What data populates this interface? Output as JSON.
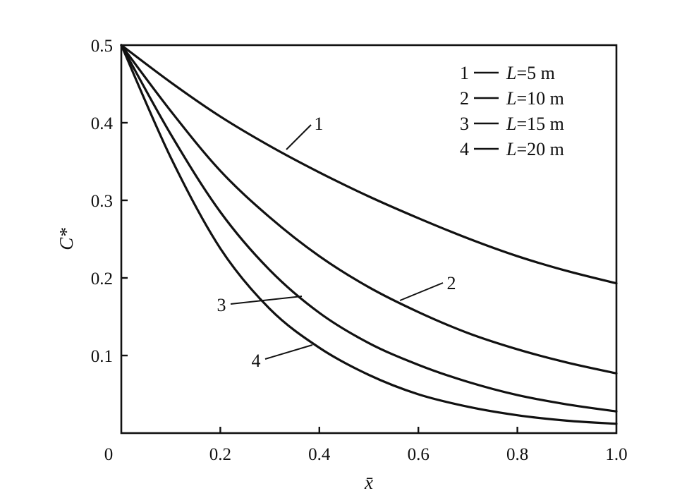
{
  "chart_data": {
    "type": "line",
    "xlabel": "x̄",
    "ylabel": "C*",
    "xlim": [
      0,
      1.0
    ],
    "ylim": [
      0,
      0.5
    ],
    "x_ticks": [
      "0",
      "0.2",
      "0.4",
      "0.6",
      "0.8",
      "1.0"
    ],
    "y_ticks": [
      "0",
      "0.1",
      "0.2",
      "0.3",
      "0.4",
      "0.5"
    ],
    "legend_placement": "top-right",
    "legend": [
      {
        "num": "1",
        "label": "L=5 m"
      },
      {
        "num": "2",
        "label": "L=10 m"
      },
      {
        "num": "3",
        "label": "L=15 m"
      },
      {
        "num": "4",
        "label": "L=20 m"
      }
    ],
    "x": [
      0,
      0.1,
      0.2,
      0.3,
      0.4,
      0.5,
      0.6,
      0.7,
      0.8,
      0.9,
      1.0
    ],
    "series": [
      {
        "name": "1",
        "values": [
          0.5,
          0.452,
          0.408,
          0.37,
          0.336,
          0.305,
          0.277,
          0.251,
          0.228,
          0.209,
          0.193
        ]
      },
      {
        "name": "2",
        "values": [
          0.5,
          0.415,
          0.338,
          0.278,
          0.228,
          0.188,
          0.156,
          0.129,
          0.108,
          0.091,
          0.077
        ]
      },
      {
        "name": "3",
        "values": [
          0.5,
          0.385,
          0.285,
          0.21,
          0.155,
          0.116,
          0.088,
          0.066,
          0.049,
          0.037,
          0.028
        ]
      },
      {
        "name": "4",
        "values": [
          0.5,
          0.355,
          0.238,
          0.16,
          0.11,
          0.075,
          0.05,
          0.034,
          0.023,
          0.016,
          0.012
        ]
      }
    ]
  }
}
